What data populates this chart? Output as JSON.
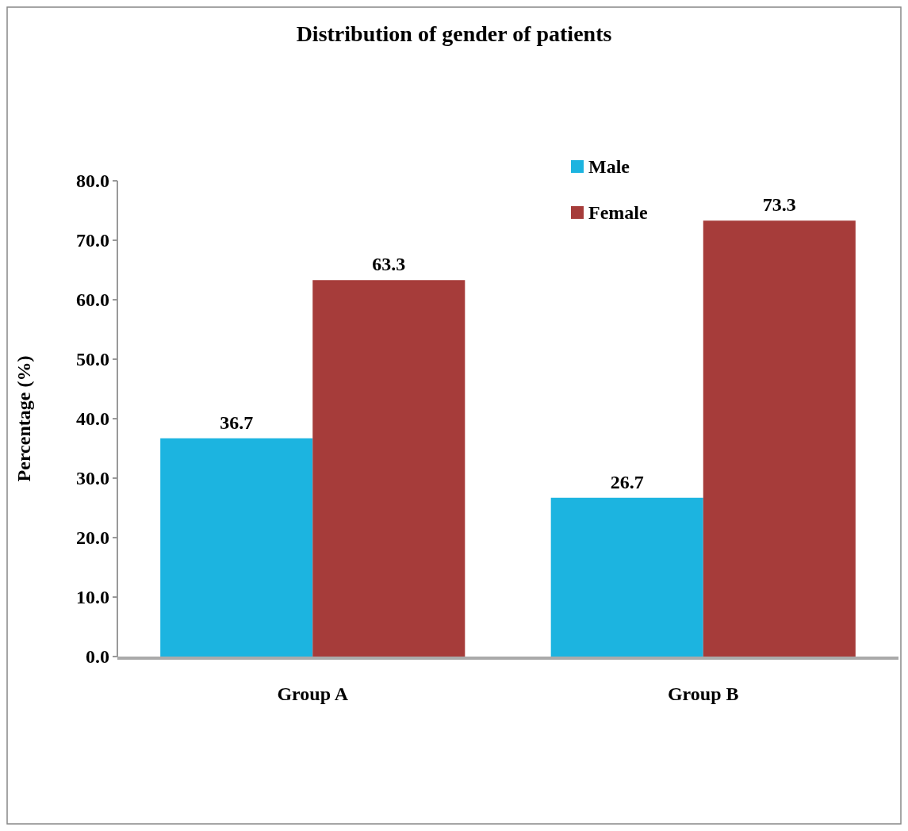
{
  "chart_data": {
    "type": "bar",
    "title": "Distribution of gender of patients",
    "ylabel": "Percentage (%)",
    "categories": [
      "Group A",
      "Group B"
    ],
    "series": [
      {
        "name": "Male",
        "color": "#1cb4e0",
        "values": [
          36.7,
          26.7
        ]
      },
      {
        "name": "Female",
        "color": "#a63c3a",
        "values": [
          63.3,
          73.3
        ]
      }
    ],
    "ylim": [
      0,
      80
    ],
    "yticks": [
      {
        "value": 0,
        "label": "0.0"
      },
      {
        "value": 10,
        "label": "10.0"
      },
      {
        "value": 20,
        "label": "20.0"
      },
      {
        "value": 30,
        "label": "30.0"
      },
      {
        "value": 40,
        "label": "40.0"
      },
      {
        "value": 50,
        "label": "50.0"
      },
      {
        "value": 60,
        "label": "60.0"
      },
      {
        "value": 70,
        "label": "70.0"
      },
      {
        "value": 80,
        "label": "80.0"
      }
    ],
    "data_labels": true,
    "grid": false,
    "legend": "top right"
  }
}
